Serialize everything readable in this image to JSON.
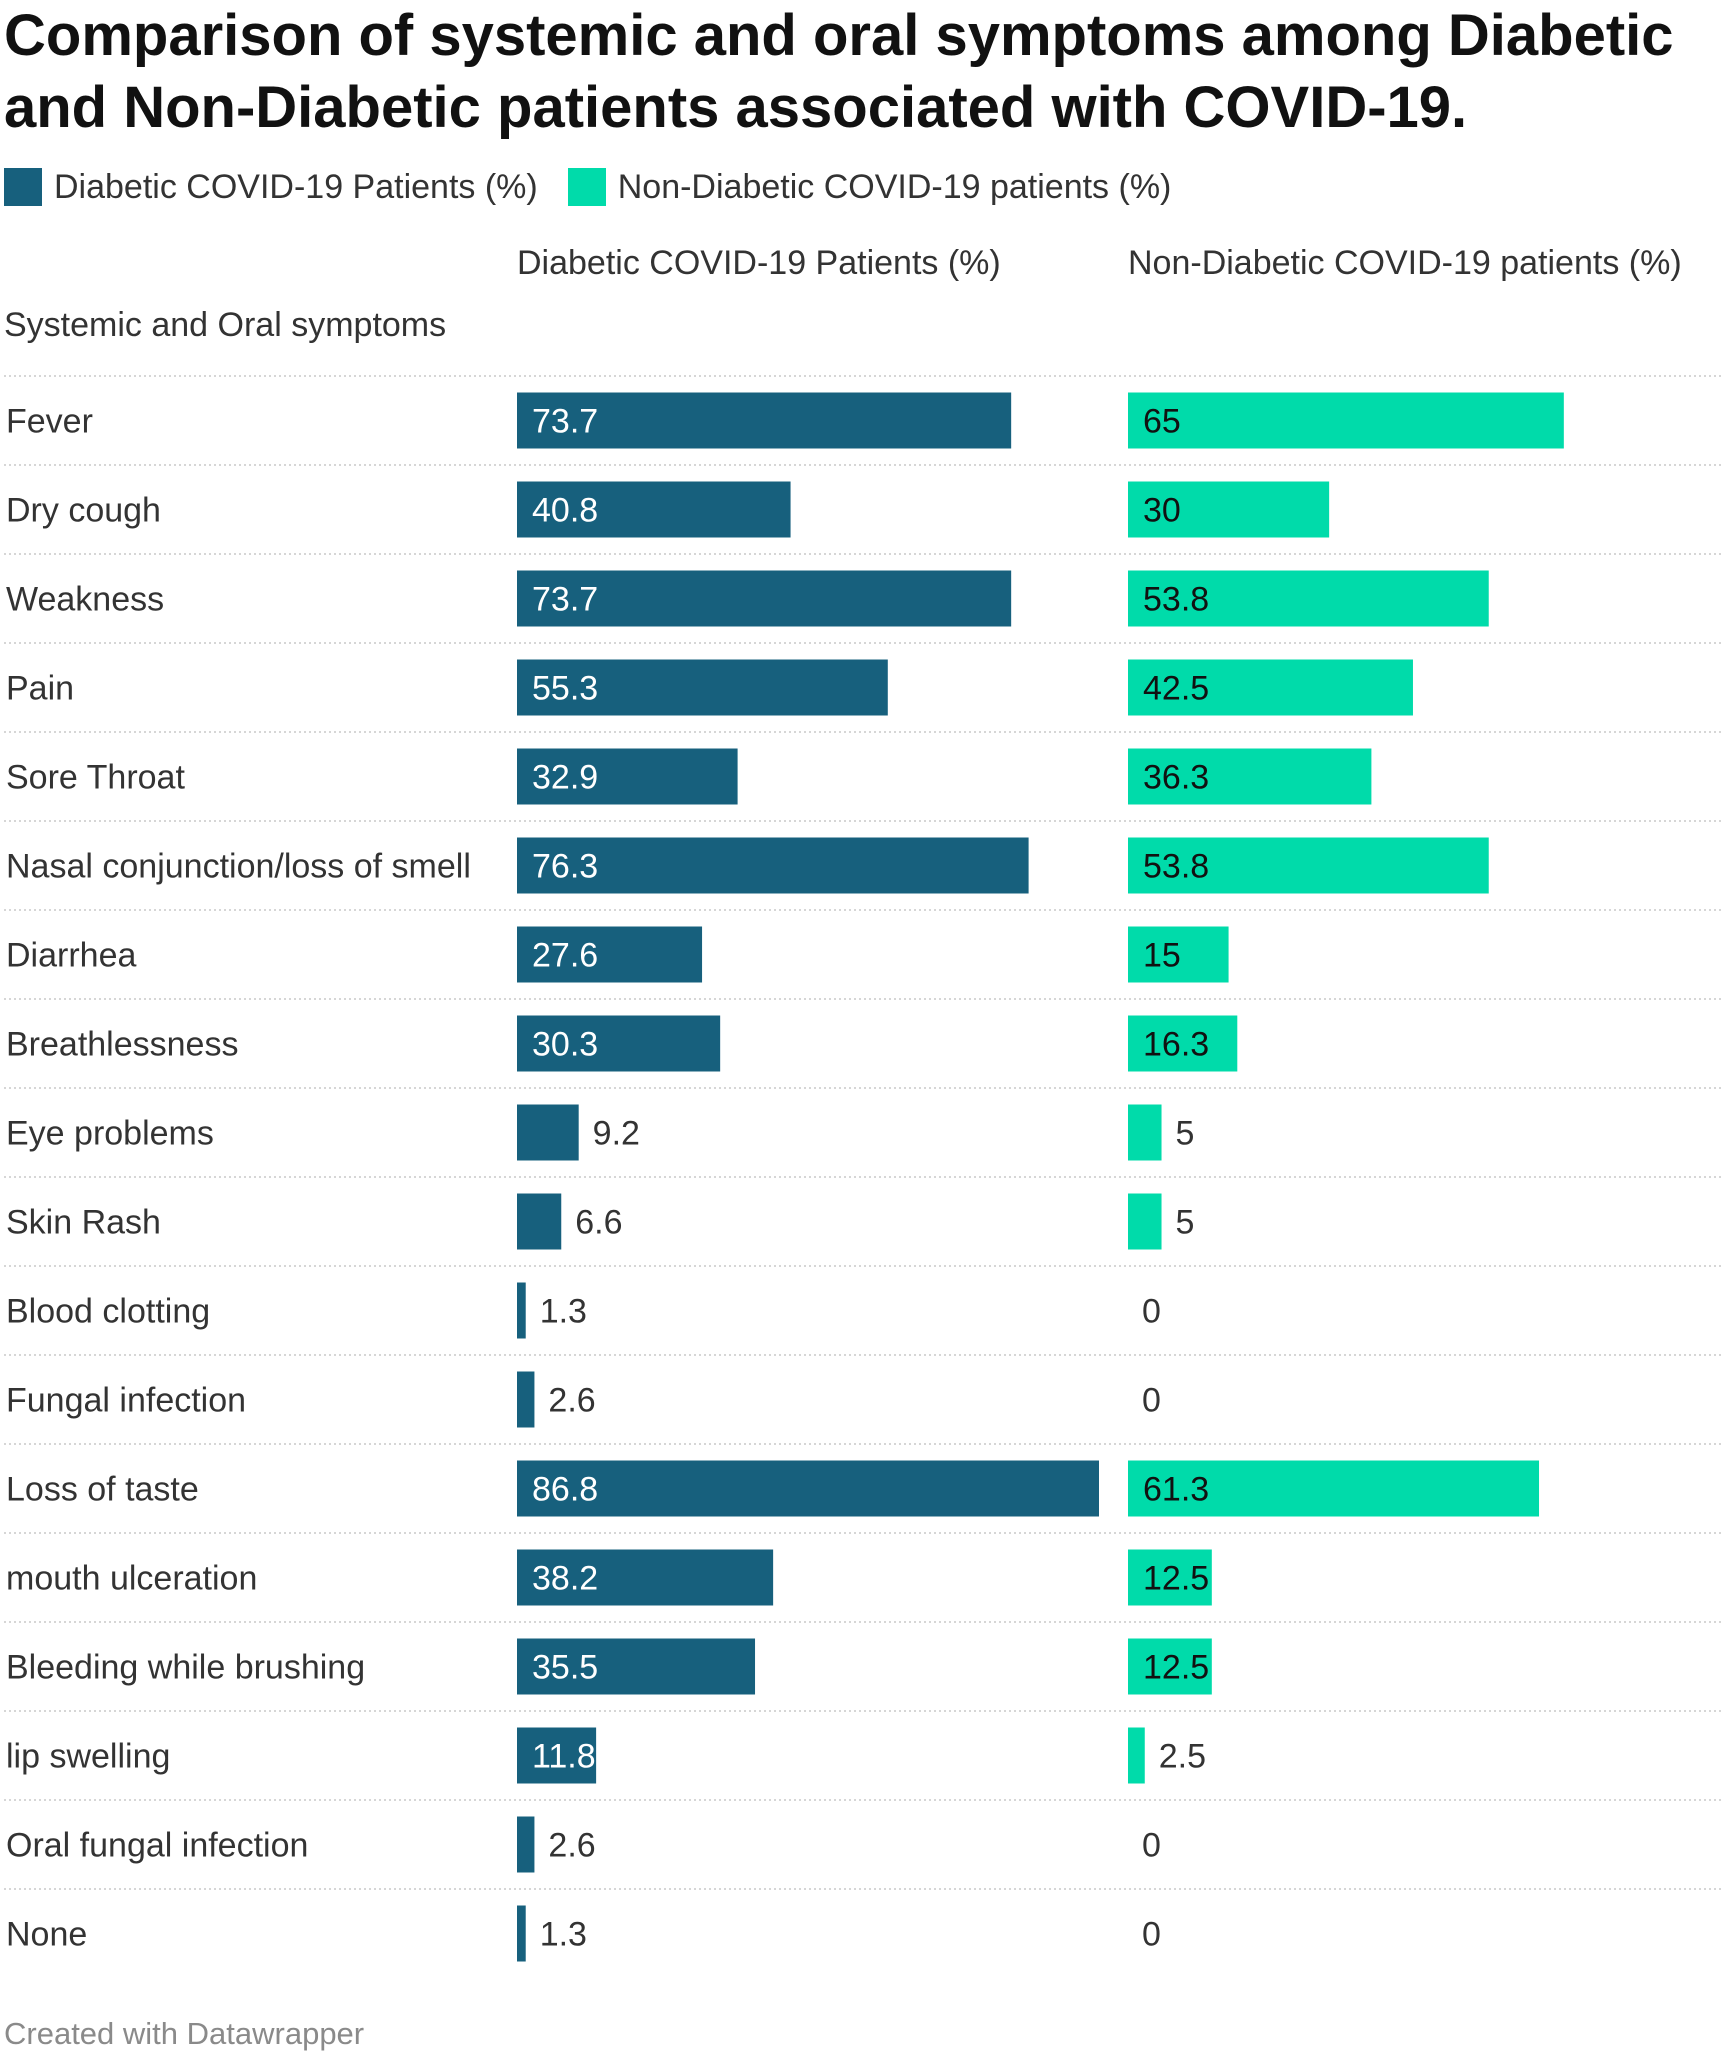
{
  "title": "Comparison of systemic and oral symptoms among Diabetic and Non-Diabetic patients associated with COVID-19.",
  "legend": [
    {
      "label": "Diabetic COVID-19 Patients (%)",
      "color": "#17607d"
    },
    {
      "label": "Non-Diabetic COVID-19 patients (%)",
      "color": "#00dbaa"
    }
  ],
  "row_header": "Systemic and Oral symptoms",
  "footer": "Created with Datawrapper",
  "chart_data": {
    "type": "bar",
    "title": "Comparison of systemic and oral symptoms among Diabetic and Non-Diabetic patients associated with COVID-19.",
    "categories": [
      "Fever",
      "Dry cough",
      "Weakness",
      "Pain",
      "Sore Throat",
      "Nasal conjunction/loss of smell",
      "Diarrhea",
      "Breathlessness",
      "Eye problems",
      "Skin Rash",
      "Blood clotting",
      "Fungal infection",
      "Loss of taste",
      "mouth ulceration",
      "Bleeding while brushing",
      "lip swelling",
      "Oral fungal infection",
      "None"
    ],
    "series": [
      {
        "name": "Diabetic COVID-19 Patients (%)",
        "color": "#17607d",
        "label_inside_color": "#ffffff",
        "values": [
          73.7,
          40.8,
          73.7,
          55.3,
          32.9,
          76.3,
          27.6,
          30.3,
          9.2,
          6.6,
          1.3,
          2.6,
          86.8,
          38.2,
          35.5,
          11.8,
          2.6,
          1.3
        ]
      },
      {
        "name": "Non-Diabetic COVID-19 patients (%)",
        "color": "#00dbaa",
        "label_inside_color": "#111111",
        "values": [
          65,
          30,
          53.8,
          42.5,
          36.3,
          53.8,
          15,
          16.3,
          5,
          5,
          0,
          0,
          61.3,
          12.5,
          12.5,
          2.5,
          0,
          0
        ]
      }
    ],
    "orientation": "horizontal",
    "xlim": [
      0,
      86.8
    ],
    "grid": false,
    "legend_position": "top-left"
  }
}
